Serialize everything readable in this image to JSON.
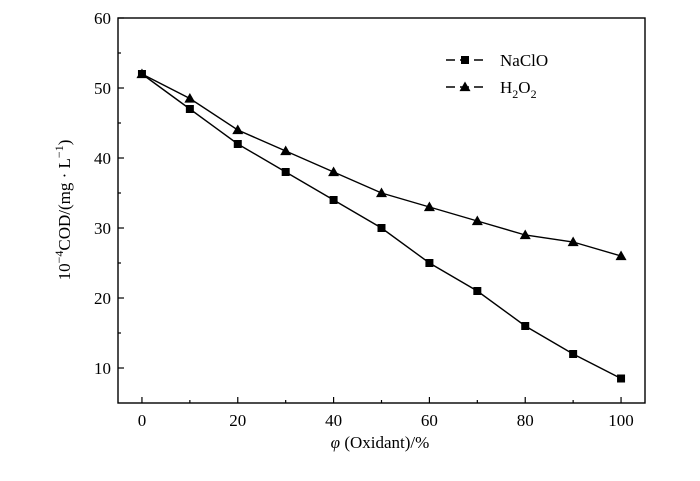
{
  "chart_data": {
    "type": "line",
    "title": "",
    "xlabel": {
      "symbol": "φ",
      "text": " (Oxidant)/%"
    },
    "ylabel": {
      "prefix": "10",
      "exponent": "−4",
      "text": "COD/(mg · L",
      "unit_exp": "−1",
      "close": ")"
    },
    "xlim": [
      -5,
      105
    ],
    "ylim": [
      5,
      60
    ],
    "x_ticks": [
      0,
      20,
      40,
      60,
      80,
      100
    ],
    "y_ticks": [
      10,
      20,
      30,
      40,
      50,
      60
    ],
    "x": [
      0,
      10,
      20,
      30,
      40,
      50,
      60,
      70,
      80,
      90,
      100
    ],
    "series": [
      {
        "name": "NaClO",
        "marker": "square",
        "color": "#000000",
        "values": [
          52,
          47,
          42,
          38,
          34,
          30,
          25,
          21,
          16,
          12,
          8.5
        ]
      },
      {
        "name": "H2O2",
        "label_parts": [
          "H",
          "2",
          "O",
          "2"
        ],
        "marker": "triangle",
        "color": "#000000",
        "values": [
          52,
          48.5,
          44,
          41,
          38,
          35,
          33,
          31,
          29,
          28,
          26
        ]
      }
    ],
    "legend_position": "top-right",
    "grid": false
  }
}
